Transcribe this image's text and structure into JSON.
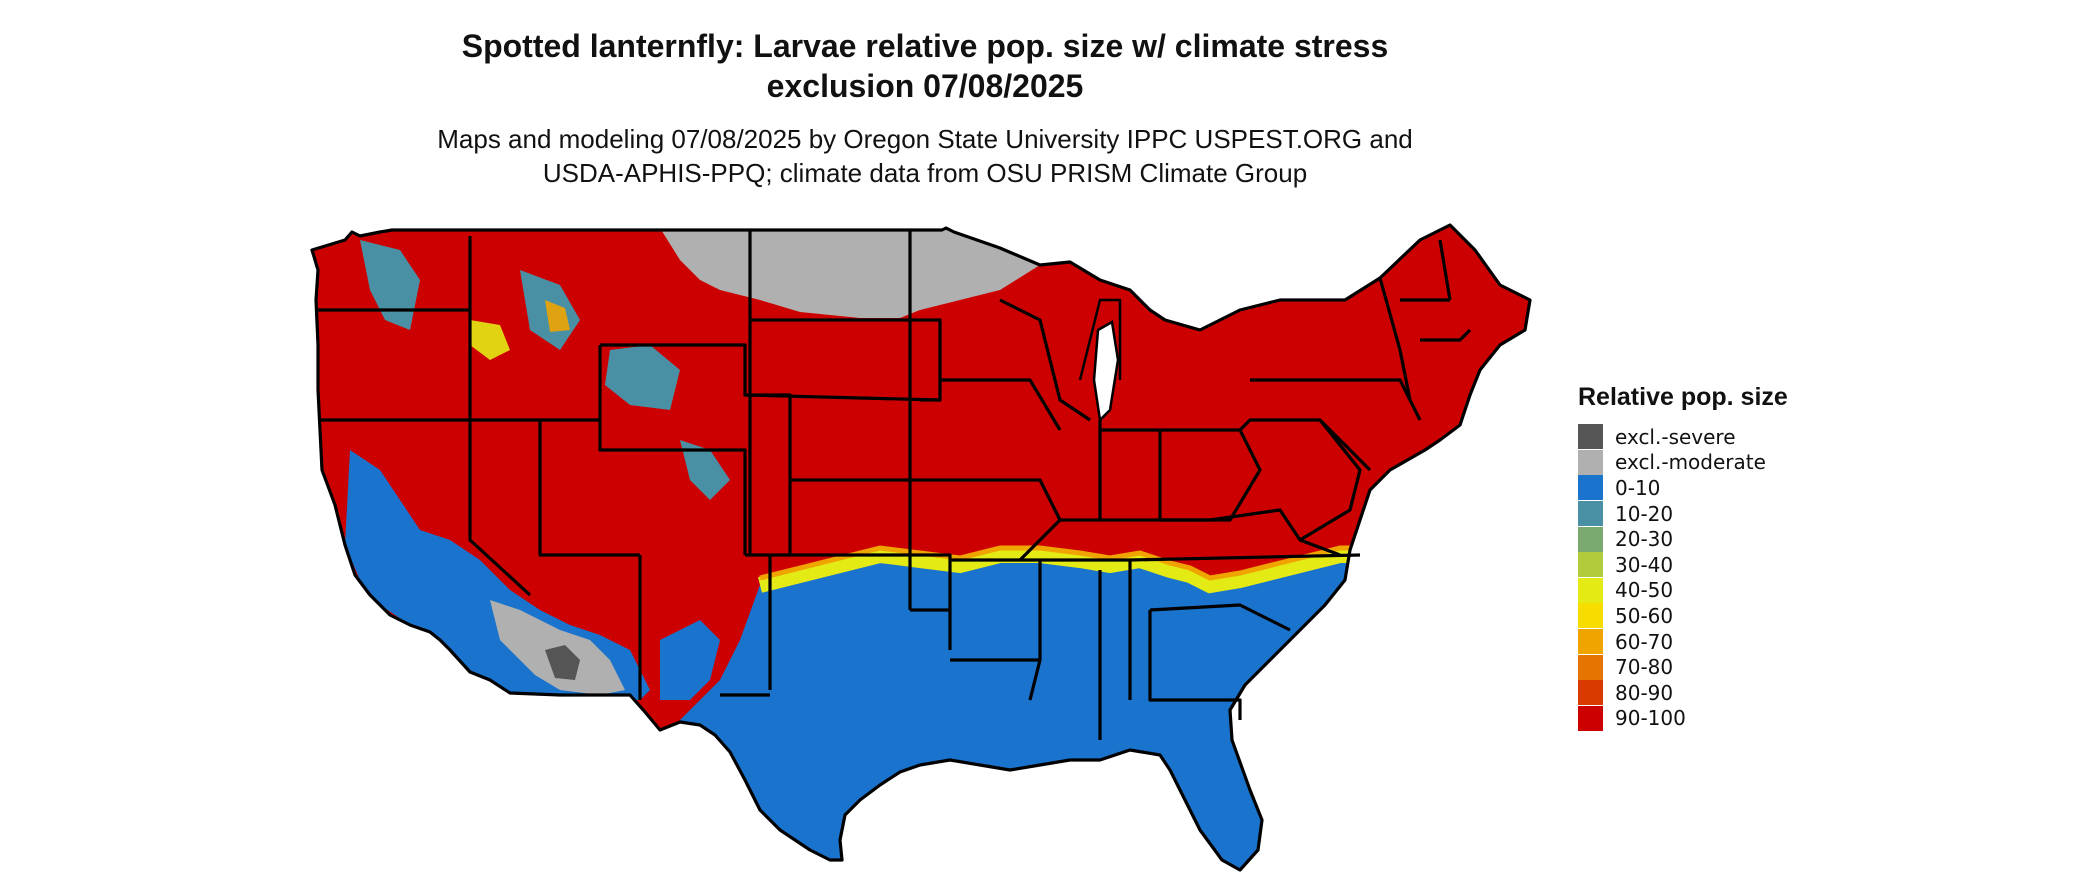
{
  "title_line1": "Spotted lanternfly: Larvae relative pop. size w/ climate stress",
  "title_line2": "exclusion 07/08/2025",
  "subtitle_line1": "Maps and modeling 07/08/2025 by Oregon State University IPPC USPEST.ORG and",
  "subtitle_line2": "USDA-APHIS-PPQ; climate data from OSU PRISM Climate Group",
  "legend": {
    "title": "Relative pop. size",
    "items": [
      {
        "label": "excl.-severe",
        "color": "#555555"
      },
      {
        "label": "excl.-moderate",
        "color": "#b0b0b0"
      },
      {
        "label": "0-10",
        "color": "#1a73cc"
      },
      {
        "label": "10-20",
        "color": "#4a90a4"
      },
      {
        "label": "20-30",
        "color": "#7aaa70"
      },
      {
        "label": "30-40",
        "color": "#b0cc3c"
      },
      {
        "label": "40-50",
        "color": "#e3ea14"
      },
      {
        "label": "50-60",
        "color": "#f7dc00"
      },
      {
        "label": "60-70",
        "color": "#f0a400"
      },
      {
        "label": "70-80",
        "color": "#e57500"
      },
      {
        "label": "80-90",
        "color": "#d93a00"
      },
      {
        "label": "90-100",
        "color": "#cc0000"
      }
    ]
  },
  "map_colors": {
    "high": "#cc0000",
    "low": "#1a73cc",
    "excl_moderate": "#b0b0b0",
    "excl_severe": "#555555",
    "transition_yellow": "#e3ea14",
    "transition_orange": "#f0a400",
    "transition_teal": "#4a90a4",
    "border": "#000000"
  }
}
